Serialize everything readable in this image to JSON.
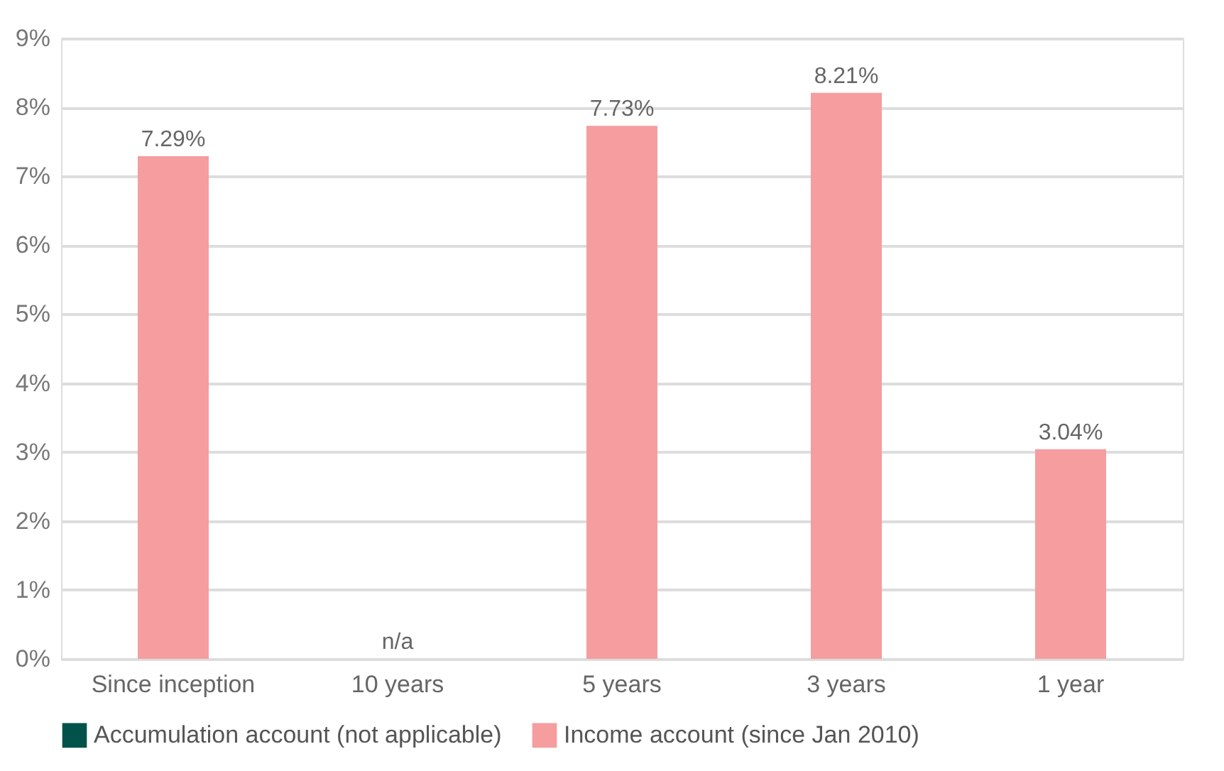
{
  "chart_data": {
    "type": "bar",
    "categories": [
      "Since inception",
      "10 years",
      "5 years",
      "3 years",
      "1 year"
    ],
    "series": [
      {
        "name": "Accumulation account (not applicable)",
        "color": "#00524a",
        "values": [
          null,
          null,
          null,
          null,
          null
        ]
      },
      {
        "name": "Income account (since Jan 2010)",
        "color": "#f59d9f",
        "values": [
          7.29,
          null,
          7.73,
          8.21,
          3.04
        ],
        "value_labels": [
          "7.29%",
          "n/a",
          "7.73%",
          "8.21%",
          "3.04%"
        ]
      }
    ],
    "ylim": [
      0,
      9
    ],
    "yticks": [
      {
        "value": 0,
        "label": "0%"
      },
      {
        "value": 1,
        "label": "1%"
      },
      {
        "value": 2,
        "label": "2%"
      },
      {
        "value": 3,
        "label": "3%"
      },
      {
        "value": 4,
        "label": "4%"
      },
      {
        "value": 5,
        "label": "5%"
      },
      {
        "value": 6,
        "label": "6%"
      },
      {
        "value": 7,
        "label": "7%"
      },
      {
        "value": 8,
        "label": "8%"
      },
      {
        "value": 9,
        "label": "9%"
      }
    ],
    "grid": "y",
    "legend": "bottom"
  }
}
